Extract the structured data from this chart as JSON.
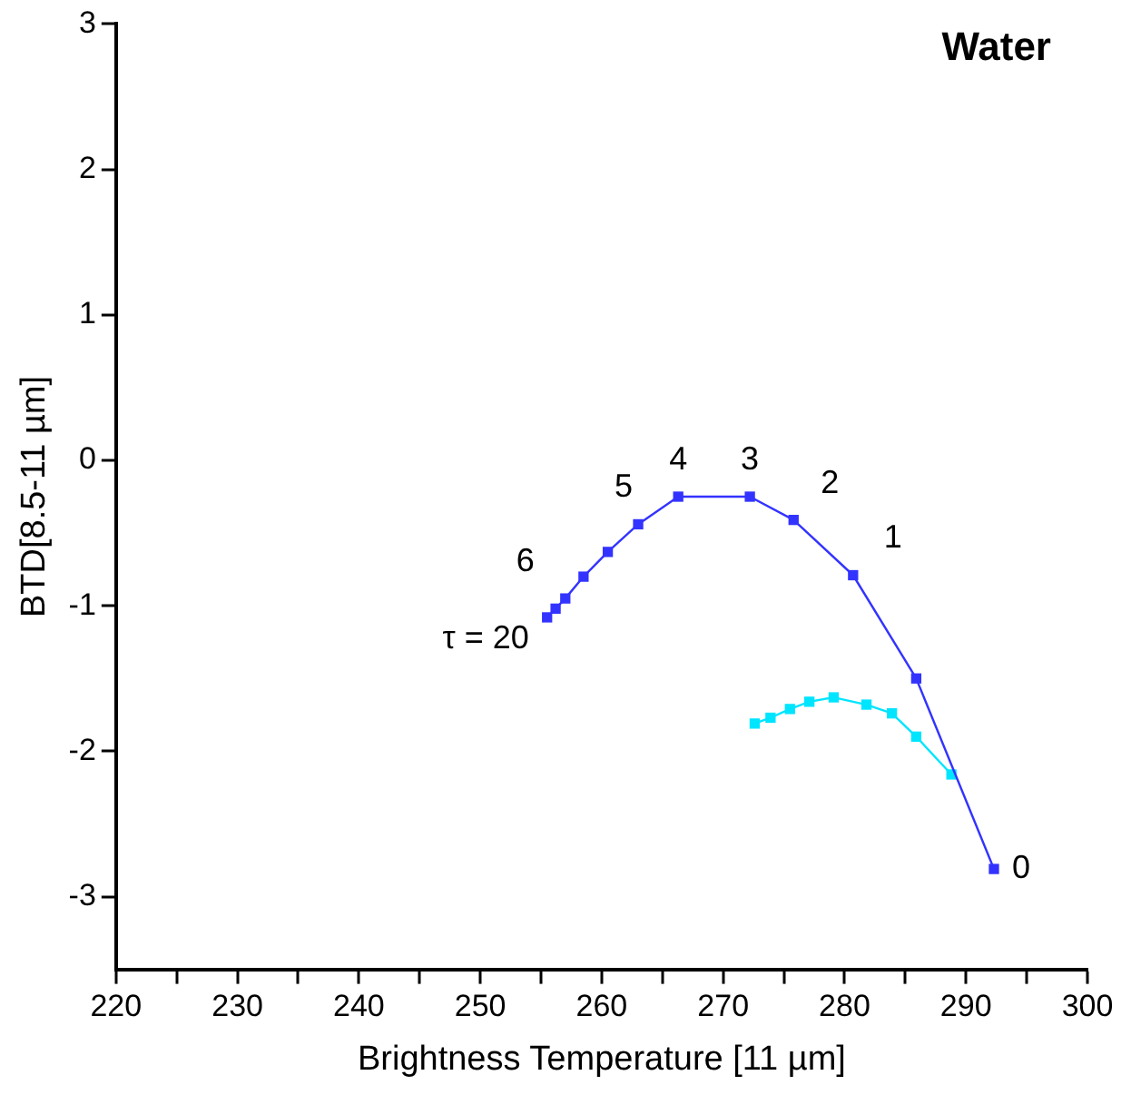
{
  "chart_data": {
    "type": "line",
    "title": "Water",
    "xlabel": "Brightness Temperature [11 µm]",
    "ylabel": "BTD[8.5-11 µm]",
    "xlim": [
      220,
      300
    ],
    "ylim": [
      -3.5,
      3
    ],
    "xticks": [
      220,
      {
        "value": 225,
        "label": null
      },
      230,
      {
        "value": 235,
        "label": null
      },
      240,
      {
        "value": 245,
        "label": null
      },
      250,
      {
        "value": 255,
        "label": null
      },
      260,
      {
        "value": 265,
        "label": null
      },
      270,
      {
        "value": 275,
        "label": null
      },
      280,
      {
        "value": 285,
        "label": null
      },
      290,
      {
        "value": 295,
        "label": null
      },
      300
    ],
    "yticks": [
      -3,
      -2,
      -1,
      0,
      1,
      2,
      3
    ],
    "grid": false,
    "legend": false,
    "marker": "square",
    "line_style": "solid",
    "series": [
      {
        "color": "#3333ff",
        "x": [
          255.5,
          256.2,
          257,
          258.5,
          260.5,
          263,
          266.3,
          272.2,
          275.8,
          280.7,
          285.9,
          292.3
        ],
        "values": [
          -1.08,
          -1.02,
          -0.95,
          -0.8,
          -0.63,
          -0.44,
          -0.25,
          -0.25,
          -0.41,
          -0.79,
          -1.5,
          -2.81
        ]
      },
      {
        "color": "#00e5ff",
        "x": [
          272.6,
          273.9,
          275.5,
          277.1,
          279.1,
          281.8,
          283.9,
          285.9,
          288.8
        ],
        "values": [
          -1.81,
          -1.77,
          -1.71,
          -1.66,
          -1.63,
          -1.68,
          -1.74,
          -1.9,
          -2.16
        ]
      }
    ],
    "annotations": [
      {
        "text": "τ = 20",
        "x": 255.5,
        "y": -1.08
      },
      {
        "text": "6",
        "x": 257,
        "y": -0.95
      },
      {
        "text": "5",
        "x": 263,
        "y": -0.44
      },
      {
        "text": "4",
        "x": 266.3,
        "y": -0.25
      },
      {
        "text": "3",
        "x": 272.2,
        "y": -0.25
      },
      {
        "text": "2",
        "x": 275.8,
        "y": -0.41
      },
      {
        "text": "1",
        "x": 280.7,
        "y": -0.79
      },
      {
        "text": "0",
        "x": 292.3,
        "y": -2.81
      }
    ]
  }
}
